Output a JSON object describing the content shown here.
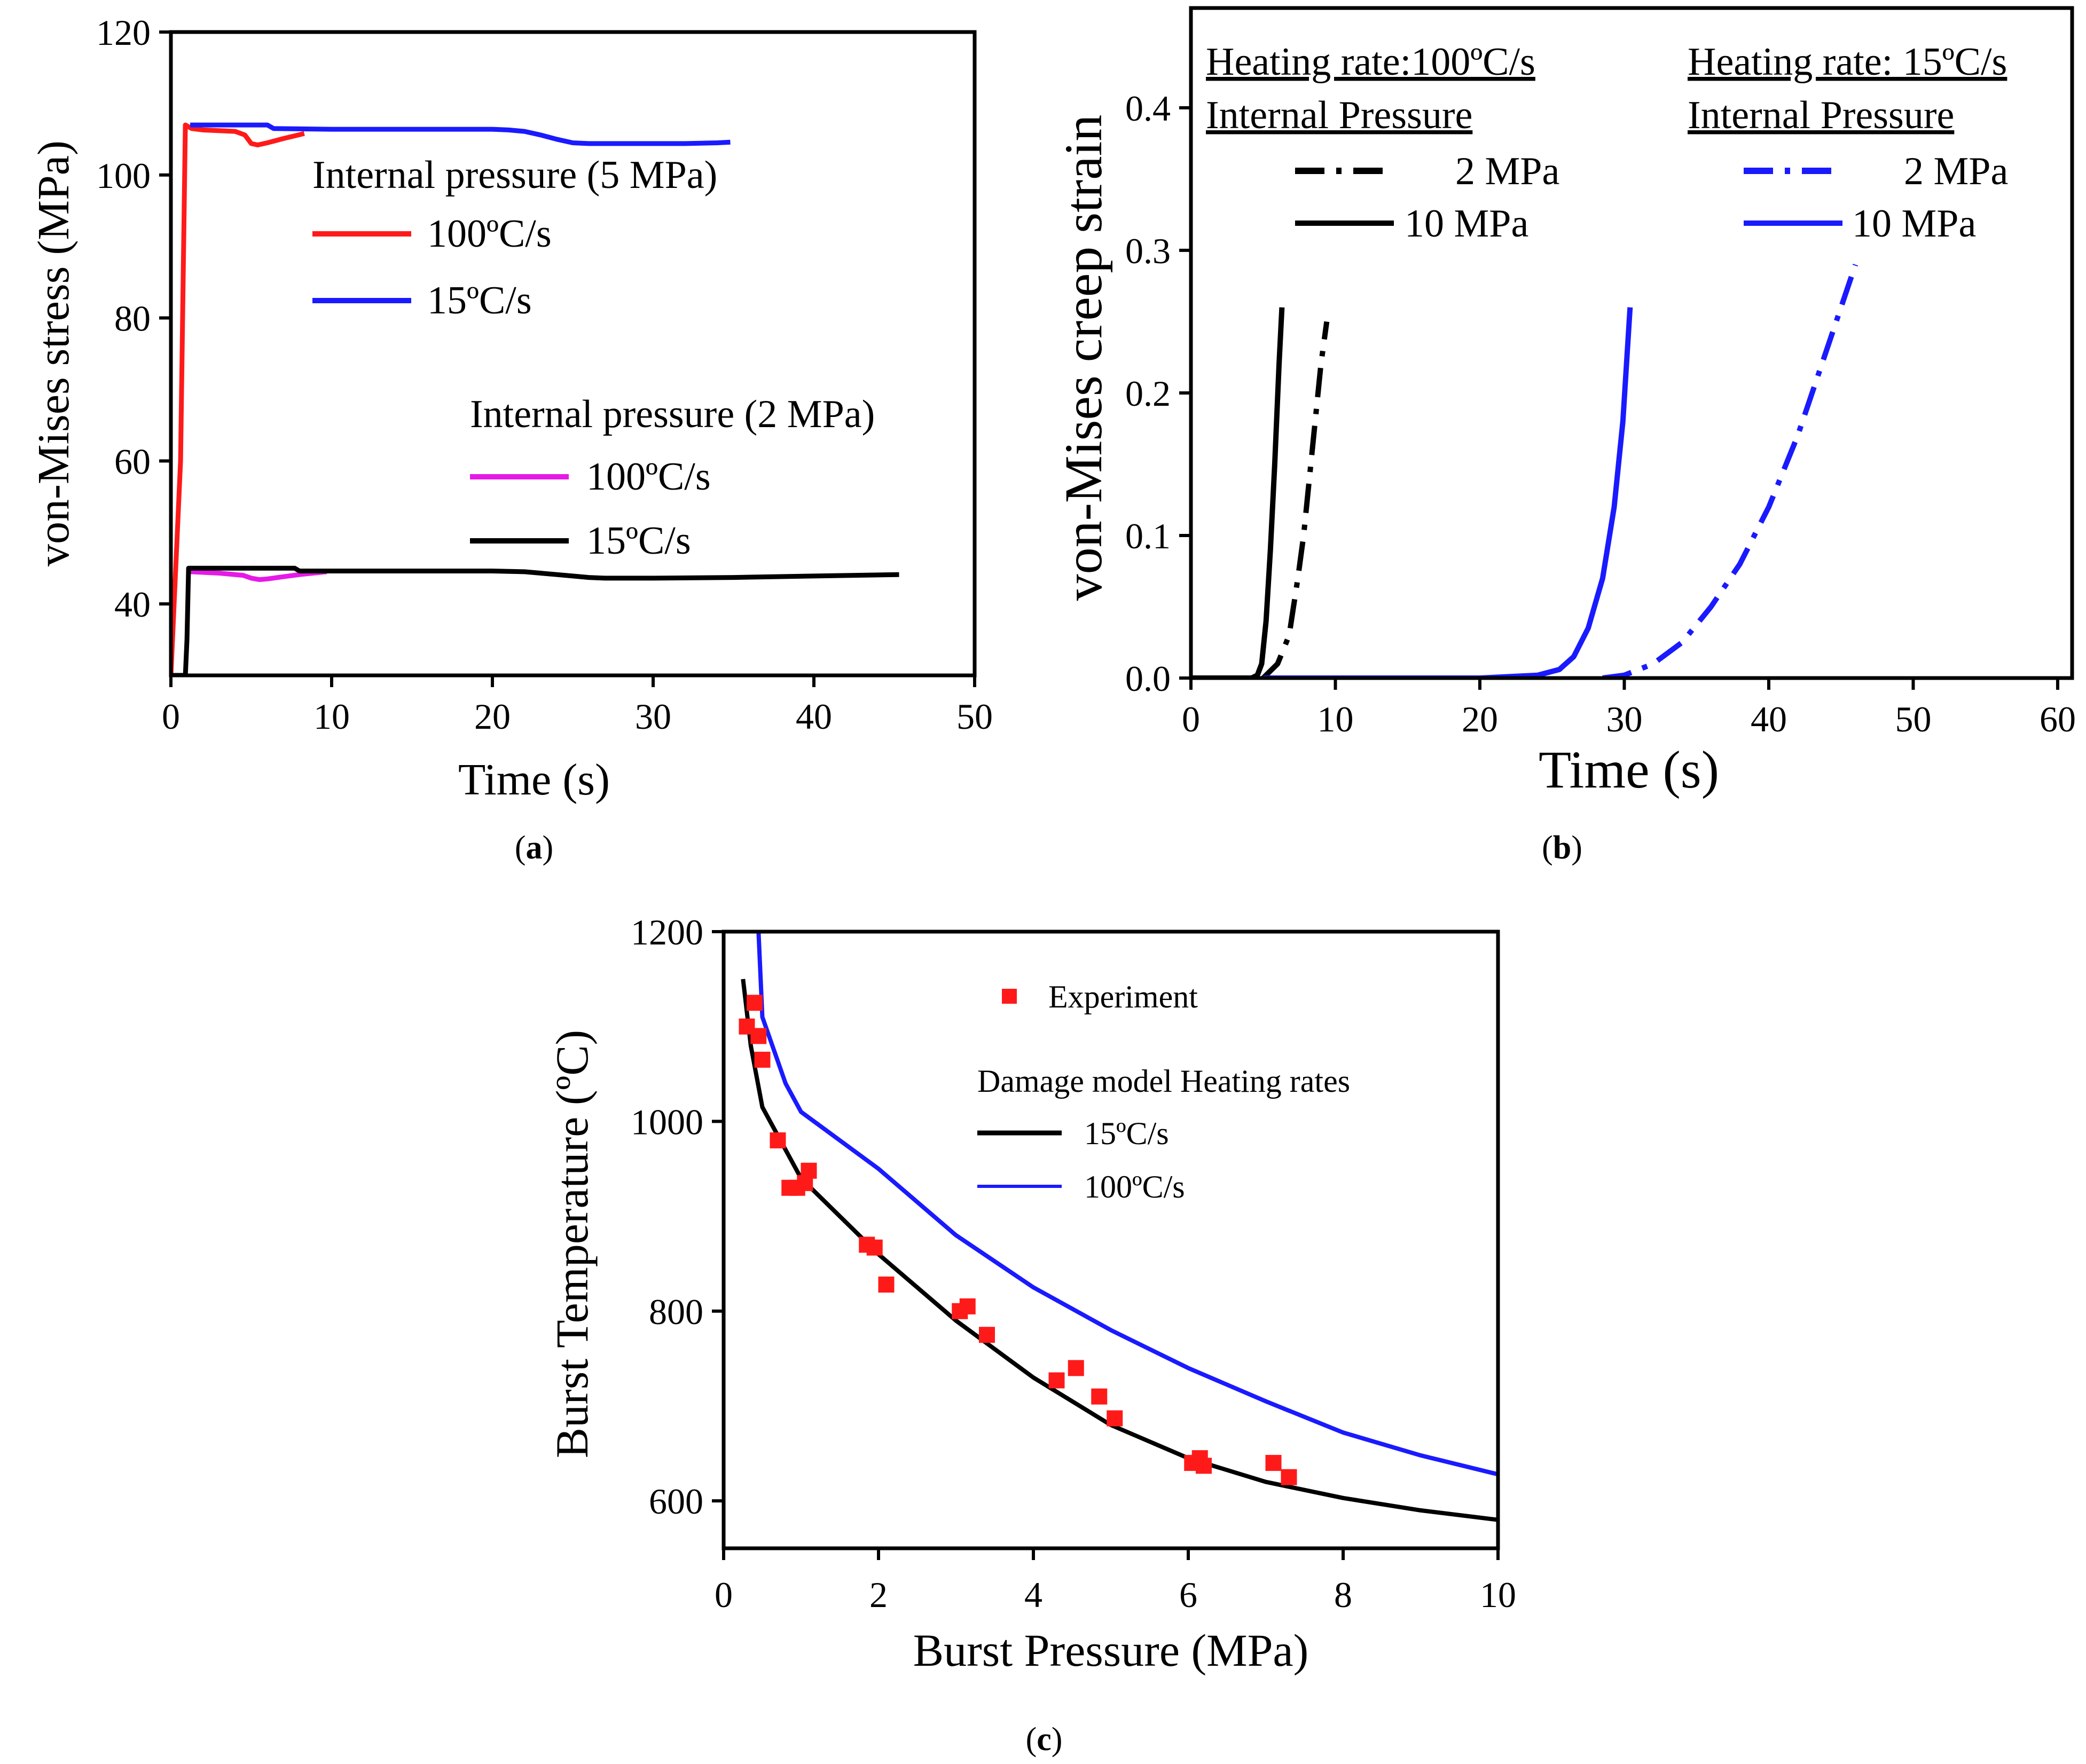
{
  "chart_data": [
    {
      "type": "line",
      "panel_label": [
        "(",
        "a",
        ")"
      ],
      "xlabel": "Time (s)",
      "ylabel": "von-Mises stress (MPa)",
      "xlim": [
        0,
        50
      ],
      "ylim": [
        30,
        120
      ],
      "xticks": [
        "0",
        "10",
        "20",
        "30",
        "40",
        "50"
      ],
      "yticks": [
        "40",
        "60",
        "80",
        "100",
        "120"
      ],
      "legend": {
        "group1_title": "Internal pressure (5 MPa)",
        "group2_title": "Internal pressure (2 MPa)",
        "entries": [
          "100ºC/s",
          "15ºC/s",
          "100ºC/s",
          "15ºC/s"
        ]
      },
      "series": [
        {
          "name": "5 MPa, 100ºC/s",
          "color": "#ff1a1a",
          "x": [
            0,
            0.6,
            0.9,
            1.3,
            2.0,
            3.0,
            4.0,
            4.6,
            5.0,
            5.4,
            6.0,
            7.0,
            8.3
          ],
          "y": [
            30,
            60,
            107,
            106.5,
            106.3,
            106.2,
            106.1,
            105.6,
            104.4,
            104.2,
            104.5,
            105.1,
            105.8
          ]
        },
        {
          "name": "5 MPa, 15ºC/s",
          "color": "#1a1aff",
          "x": [
            1.2,
            2.0,
            6.0,
            6.4,
            10,
            15,
            20,
            21,
            22,
            23,
            24,
            25,
            26,
            28,
            30,
            32,
            34,
            34.8
          ],
          "y": [
            107,
            107,
            107,
            106.5,
            106.4,
            106.4,
            106.4,
            106.3,
            106.1,
            105.6,
            105.0,
            104.5,
            104.4,
            104.4,
            104.4,
            104.4,
            104.5,
            104.6
          ]
        },
        {
          "name": "2 MPa, 100ºC/s",
          "color": "#e61ae6",
          "x": [
            1.2,
            3.0,
            4.5,
            5.0,
            5.5,
            6.0,
            7.0,
            8.0,
            9.7
          ],
          "y": [
            44.5,
            44.3,
            44.0,
            43.6,
            43.4,
            43.5,
            43.8,
            44.1,
            44.5
          ]
        },
        {
          "name": "2 MPa, 15ºC/s",
          "color": "#000000",
          "x": [
            0,
            0.5,
            0.9,
            1.0,
            1.1,
            1.3,
            7.7,
            8.0,
            15,
            20,
            22,
            23,
            24,
            25,
            26,
            27,
            30,
            35,
            40,
            45.3
          ],
          "y": [
            30,
            30,
            30,
            35,
            45,
            45.0,
            45.0,
            44.6,
            44.6,
            44.6,
            44.5,
            44.3,
            44.1,
            43.9,
            43.7,
            43.6,
            43.6,
            43.7,
            43.9,
            44.1
          ]
        }
      ]
    },
    {
      "type": "line",
      "panel_label": [
        "(",
        "b",
        ")"
      ],
      "xlabel": "Time (s)",
      "ylabel": "von-Mises creep strain",
      "xlim": [
        0,
        61
      ],
      "ylim": [
        0,
        0.47
      ],
      "xticks": [
        "0",
        "10",
        "20",
        "30",
        "40",
        "50",
        "60"
      ],
      "yticks": [
        "0.0",
        "0.1",
        "0.2",
        "0.3",
        "0.4"
      ],
      "legend": {
        "left_heading": "Heating rate:100ºC/s",
        "right_heading": "Heating rate: 15ºC/s",
        "subheading": "Internal Pressure",
        "entries": [
          "2 MPa",
          "10 MPa",
          "2 MPa",
          "10 MPa"
        ]
      },
      "series": [
        {
          "name": "100ºC/s, 2 MPa",
          "color": "#000000",
          "dash": "dashdot",
          "x": [
            5.0,
            6.0,
            6.8,
            7.4,
            7.8,
            8.2,
            8.6,
            9.0,
            9.4
          ],
          "y": [
            0.0,
            0.01,
            0.03,
            0.07,
            0.1,
            0.14,
            0.18,
            0.22,
            0.25
          ]
        },
        {
          "name": "100ºC/s, 10 MPa",
          "color": "#000000",
          "dash": "solid",
          "x": [
            0,
            4.2,
            4.6,
            4.9,
            5.2,
            5.5,
            5.8,
            6.1,
            6.3
          ],
          "y": [
            0.0,
            0.0,
            0.002,
            0.01,
            0.04,
            0.09,
            0.15,
            0.22,
            0.26
          ]
        },
        {
          "name": "15ºC/s, 2 MPa",
          "color": "#1a1aff",
          "dash": "dashdot",
          "x": [
            28.5,
            30,
            32,
            34,
            36,
            38,
            40,
            42,
            44,
            46
          ],
          "y": [
            0.0,
            0.002,
            0.01,
            0.025,
            0.05,
            0.08,
            0.12,
            0.17,
            0.23,
            0.29
          ]
        },
        {
          "name": "15ºC/s, 10 MPa",
          "color": "#1a1aff",
          "dash": "solid",
          "x": [
            5,
            20,
            24,
            25.5,
            26.5,
            27.5,
            28.5,
            29.3,
            29.9,
            30.4
          ],
          "y": [
            0.0,
            0.0,
            0.002,
            0.006,
            0.015,
            0.035,
            0.07,
            0.12,
            0.18,
            0.26
          ]
        }
      ]
    },
    {
      "type": "scatter+line",
      "panel_label": [
        "(",
        "c",
        ")"
      ],
      "xlabel": "Burst Pressure (MPa)",
      "ylabel": "Burst Temperature (ºC)",
      "xlim": [
        0,
        10
      ],
      "ylim": [
        550,
        1200
      ],
      "xticks": [
        "0",
        "2",
        "4",
        "6",
        "8",
        "10"
      ],
      "yticks": [
        "600",
        "800",
        "1000",
        "1200"
      ],
      "legend": {
        "experiment": "Experiment",
        "model_title": "Damage model Heating rates",
        "entries": [
          "15ºC/s",
          "100ºC/s"
        ]
      },
      "experiment": {
        "color": "#ff1a1a",
        "x": [
          0.3,
          0.4,
          0.45,
          0.5,
          0.7,
          0.85,
          0.95,
          1.05,
          1.1,
          1.85,
          1.95,
          2.1,
          3.05,
          3.15,
          3.4,
          4.3,
          4.55,
          4.85,
          5.05,
          6.05,
          6.15,
          6.2,
          7.1,
          7.3
        ],
        "y": [
          1100,
          1125,
          1090,
          1065,
          980,
          930,
          930,
          935,
          948,
          870,
          867,
          828,
          800,
          805,
          775,
          727,
          740,
          710,
          687,
          640,
          645,
          637,
          640,
          625
        ]
      },
      "series": [
        {
          "name": "15ºC/s",
          "color": "#000000",
          "x": [
            0.25,
            0.35,
            0.5,
            1.0,
            2.0,
            3.0,
            4.0,
            5.0,
            6.0,
            7.0,
            8.0,
            9.0,
            10.0
          ],
          "y": [
            1150,
            1080,
            1015,
            940,
            860,
            790,
            730,
            680,
            645,
            620,
            603,
            590,
            580
          ]
        },
        {
          "name": "100ºC/s",
          "color": "#1a1aff",
          "x": [
            0.45,
            0.5,
            0.8,
            1.0,
            2.0,
            3.0,
            4.0,
            5.0,
            6.0,
            7.0,
            8.0,
            9.0,
            10.0
          ],
          "y": [
            1200,
            1110,
            1040,
            1010,
            950,
            880,
            825,
            780,
            740,
            705,
            672,
            648,
            628
          ]
        }
      ]
    }
  ]
}
